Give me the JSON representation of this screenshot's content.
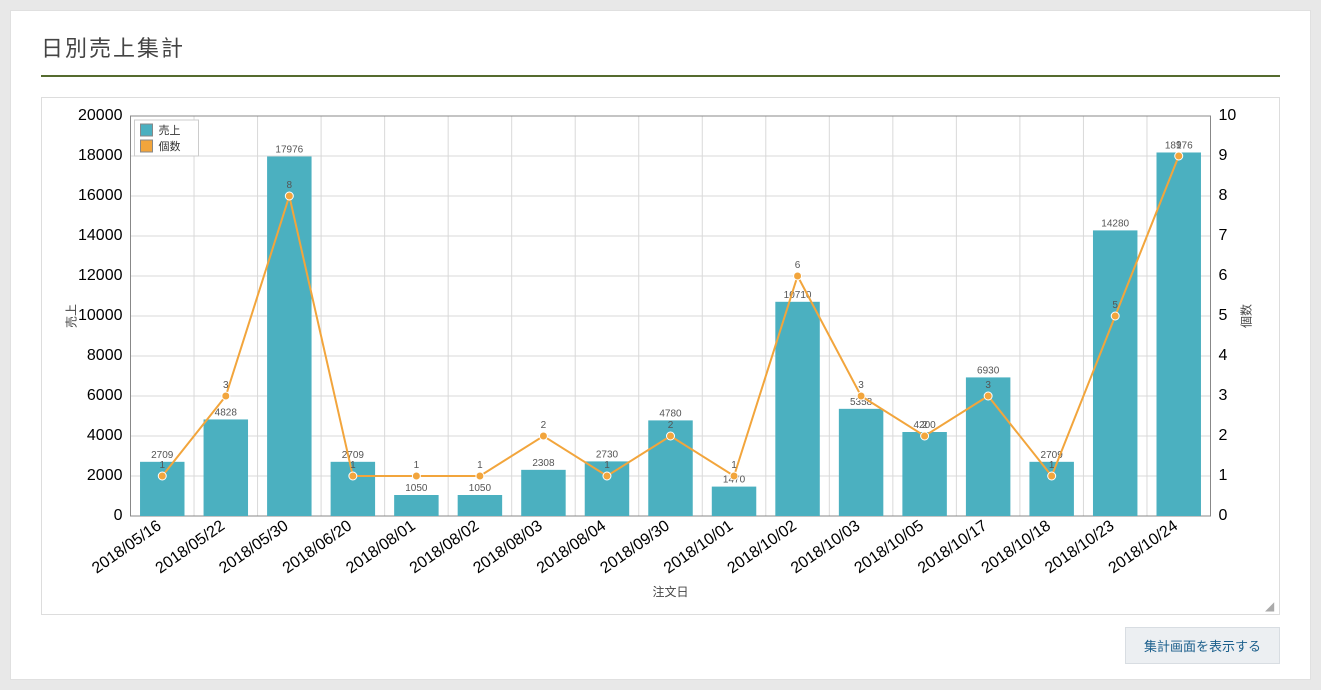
{
  "title": "日別売上集計",
  "button": {
    "label": "集計画面を表示する"
  },
  "chart": {
    "type": "bar+line",
    "categories": [
      "2018/05/16",
      "2018/05/22",
      "2018/05/30",
      "2018/06/20",
      "2018/08/01",
      "2018/08/02",
      "2018/08/03",
      "2018/08/04",
      "2018/09/30",
      "2018/10/01",
      "2018/10/02",
      "2018/10/03",
      "2018/10/05",
      "2018/10/17",
      "2018/10/18",
      "2018/10/23",
      "2018/10/24"
    ],
    "bar": {
      "name": "売上",
      "color": "#4bb0c0",
      "values": [
        2709,
        4828,
        17976,
        2709,
        1050,
        1050,
        2308,
        2730,
        4780,
        1470,
        10710,
        5358,
        4200,
        6930,
        2709,
        14280,
        18176
      ],
      "labels": [
        "2709",
        "4828",
        "17976",
        "2709",
        "1050",
        "1050",
        "2308",
        "2730",
        "4780",
        "1470",
        "10710",
        "5358",
        "4200",
        "6930",
        "2709",
        "14280",
        "18176"
      ]
    },
    "line": {
      "name": "個数",
      "color": "#f2a53c",
      "marker_color": "#f2a53c",
      "line_width": 2,
      "marker_radius": 4,
      "values": [
        1,
        3,
        8,
        1,
        1,
        1,
        2,
        1,
        2,
        1,
        6,
        3,
        2,
        3,
        1,
        5,
        9
      ],
      "labels": [
        "1",
        "3",
        "8",
        "1",
        "1",
        "1",
        "2",
        "1",
        "2",
        "1",
        "6",
        "3",
        "2",
        "3",
        "1",
        "5",
        "9"
      ]
    },
    "y_left": {
      "label": "売上",
      "min": 0,
      "max": 20000,
      "step": 2000
    },
    "y_right": {
      "label": "個数",
      "min": 0,
      "max": 10,
      "step": 1
    },
    "x_label": "注文日",
    "background_color": "#ffffff",
    "grid_color": "#d9d9d9",
    "axis_color": "#888888",
    "legend": {
      "bg": "#ffffff",
      "border": "#cccccc"
    }
  }
}
